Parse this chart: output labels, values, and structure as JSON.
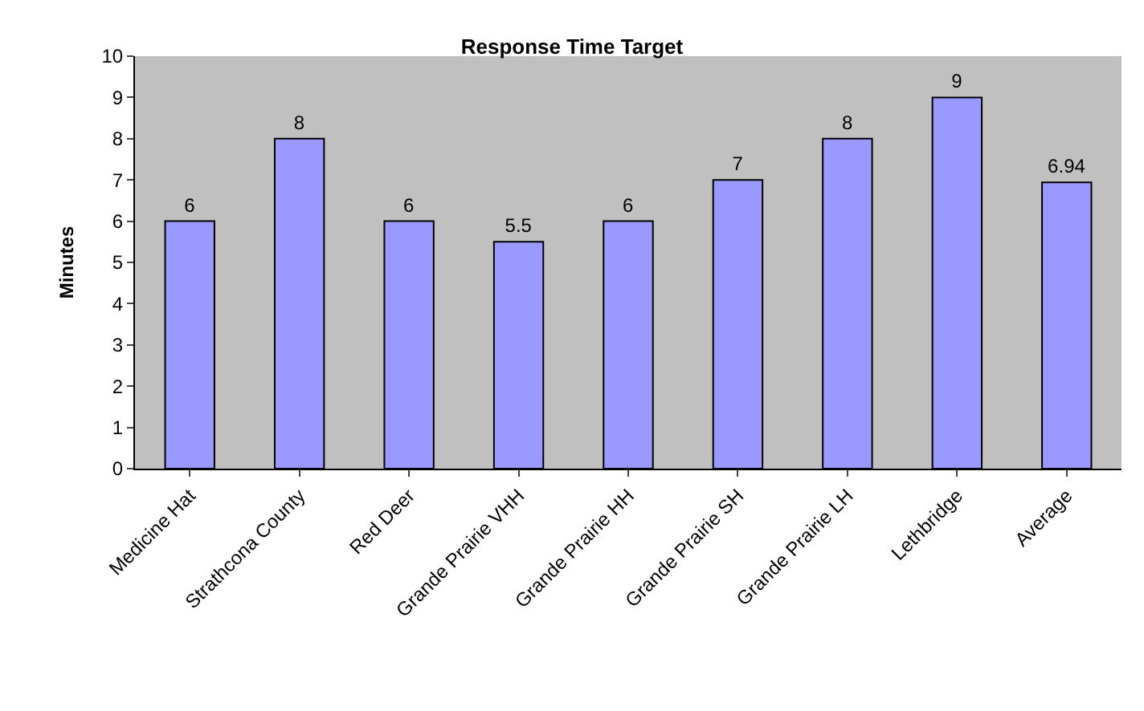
{
  "chart_data": {
    "type": "bar",
    "title": "Response Time Target",
    "ylabel": "Minutes",
    "categories": [
      "Medicine Hat",
      "Strathcona County",
      "Red Deer",
      "Grande Prairie VHH",
      "Grande Prairie HH",
      "Grande Prairie SH",
      "Grande Prairie LH",
      "Lethbridge",
      "Average"
    ],
    "values": [
      6,
      8,
      6,
      5.5,
      6,
      7,
      8,
      9,
      6.94
    ],
    "color": "#9999ff",
    "ylim": [
      0,
      10
    ],
    "yticks": [
      0,
      1,
      2,
      3,
      4,
      5,
      6,
      7,
      8,
      9,
      10
    ],
    "data_labels": true,
    "grid": false,
    "legend": false
  }
}
